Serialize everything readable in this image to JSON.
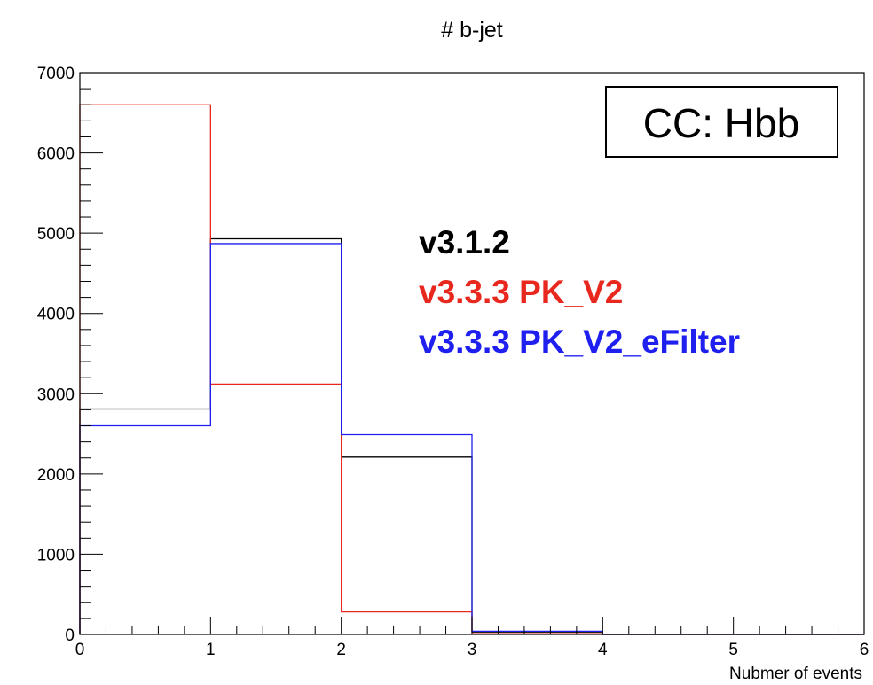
{
  "chart_data": {
    "type": "histogram",
    "title": "# b-jet",
    "xlabel": "Nubmer of events",
    "ylabel": "",
    "xlim": [
      0,
      6
    ],
    "ylim": [
      0,
      7000
    ],
    "x_ticks": [
      "0",
      "1",
      "2",
      "3",
      "4",
      "5",
      "6"
    ],
    "y_ticks": [
      "0",
      "1000",
      "2000",
      "3000",
      "4000",
      "5000",
      "6000",
      "7000"
    ],
    "bin_edges": [
      0,
      1,
      2,
      3,
      4,
      5,
      6
    ],
    "annotation": "CC: Hbb",
    "legend_position": "center-right",
    "grid": false,
    "series": [
      {
        "name": "v3.1.2",
        "color": "#000000",
        "values": [
          2810,
          4930,
          2210,
          30,
          0,
          0
        ]
      },
      {
        "name": "v3.3.3 PK_V2",
        "color": "#e8281e",
        "values": [
          6600,
          3120,
          280,
          10,
          0,
          0
        ]
      },
      {
        "name": "v3.3.3 PK_V2_eFilter",
        "color": "#1f1ff0",
        "values": [
          2600,
          4870,
          2490,
          40,
          0,
          0
        ]
      }
    ]
  }
}
